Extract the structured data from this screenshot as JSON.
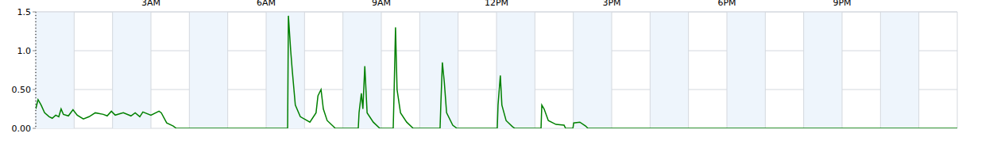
{
  "chart_data": {
    "type": "line",
    "x": [
      0,
      0.06,
      0.14,
      0.23,
      0.35,
      0.43,
      0.52,
      0.6,
      0.66,
      0.72,
      0.85,
      0.97,
      1.08,
      1.24,
      1.39,
      1.55,
      1.76,
      1.86,
      1.97,
      2.07,
      2.28,
      2.48,
      2.59,
      2.71,
      2.79,
      3.0,
      3.21,
      3.27,
      3.41,
      3.58,
      3.66,
      6.56,
      6.58,
      6.64,
      6.68,
      6.76,
      6.89,
      7.14,
      7.3,
      7.35,
      7.43,
      7.49,
      7.59,
      7.76,
      7.8,
      8.4,
      8.42,
      8.48,
      8.52,
      8.57,
      8.63,
      8.79,
      8.96,
      9.31,
      9.33,
      9.37,
      9.41,
      9.5,
      9.66,
      9.83,
      10.53,
      10.55,
      10.59,
      10.64,
      10.7,
      10.86,
      10.97,
      12.02,
      12.04,
      12.1,
      12.14,
      12.25,
      12.42,
      12.48,
      13.16,
      13.18,
      13.24,
      13.35,
      13.55,
      13.76,
      13.8,
      13.99,
      14.01,
      14.17,
      14.32,
      14.38,
      24
    ],
    "values": [
      0.25,
      0.37,
      0.3,
      0.2,
      0.15,
      0.13,
      0.17,
      0.15,
      0.25,
      0.18,
      0.16,
      0.24,
      0.17,
      0.12,
      0.15,
      0.2,
      0.18,
      0.16,
      0.22,
      0.17,
      0.2,
      0.16,
      0.2,
      0.15,
      0.21,
      0.17,
      0.22,
      0.2,
      0.07,
      0.03,
      0,
      0,
      1.45,
      1.0,
      0.75,
      0.3,
      0.15,
      0.08,
      0.2,
      0.42,
      0.5,
      0.25,
      0.1,
      0.02,
      0,
      0,
      0.2,
      0.45,
      0.25,
      0.8,
      0.2,
      0.08,
      0,
      0,
      0.4,
      1.3,
      0.5,
      0.2,
      0.08,
      0,
      0,
      0.3,
      0.85,
      0.6,
      0.2,
      0.04,
      0,
      0,
      0.3,
      0.68,
      0.3,
      0.1,
      0.02,
      0,
      0,
      0.3,
      0.25,
      0.1,
      0.05,
      0.04,
      0,
      0,
      0.07,
      0.08,
      0.03,
      0,
      0
    ],
    "color": "#008000",
    "xlim": [
      0,
      24
    ],
    "xticks": [
      {
        "value": 3,
        "label": "3AM"
      },
      {
        "value": 6,
        "label": "6AM"
      },
      {
        "value": 9,
        "label": "9AM"
      },
      {
        "value": 12,
        "label": "12PM"
      },
      {
        "value": 15,
        "label": "3PM"
      },
      {
        "value": 18,
        "label": "6PM"
      },
      {
        "value": 21,
        "label": "9PM"
      }
    ],
    "ylim": [
      0,
      1.5
    ],
    "yticks": [
      {
        "value": 0,
        "label": "0.00"
      },
      {
        "value": 0.5,
        "label": "0.50"
      },
      {
        "value": 1,
        "label": "1.0"
      },
      {
        "value": 1.5,
        "label": "1.5"
      }
    ],
    "grid": true
  }
}
